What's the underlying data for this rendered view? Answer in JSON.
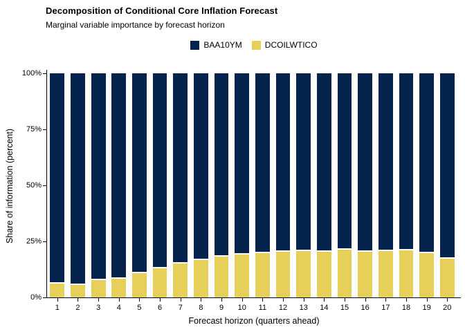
{
  "header": {
    "title": "Decomposition of Conditional Core Inflation Forecast",
    "subtitle": "Marginal variable importance by forecast horizon"
  },
  "legend": {
    "items": [
      {
        "label": "BAA10YM",
        "color": "#04234D"
      },
      {
        "label": "DCOILWTICO",
        "color": "#E6D05A"
      }
    ]
  },
  "chart_data": {
    "type": "bar",
    "stacked": true,
    "normalized": "percent",
    "title": "Decomposition of Conditional Core Inflation Forecast",
    "subtitle": "Marginal variable importance by forecast horizon",
    "xlabel": "Forecast horizon (quarters ahead)",
    "ylabel": "Share of information (percent)",
    "legend_position": "top-center",
    "grid": false,
    "ylim": [
      0,
      100
    ],
    "categories": [
      "1",
      "2",
      "3",
      "4",
      "5",
      "6",
      "7",
      "8",
      "9",
      "10",
      "11",
      "12",
      "13",
      "14",
      "15",
      "16",
      "17",
      "18",
      "19",
      "20"
    ],
    "series": [
      {
        "name": "BAA10YM",
        "color": "#04234D",
        "position": "top",
        "values": [
          93.3,
          93.8,
          91.8,
          90.9,
          88.7,
          86.5,
          84.3,
          82.8,
          81.1,
          80.2,
          79.5,
          79.1,
          78.6,
          78.9,
          78.2,
          79.0,
          78.8,
          78.5,
          79.6,
          82.0
        ]
      },
      {
        "name": "DCOILWTICO",
        "color": "#E6D05A",
        "position": "bottom",
        "values": [
          6.7,
          6.2,
          8.2,
          9.1,
          11.3,
          13.5,
          15.7,
          17.2,
          18.9,
          19.8,
          20.5,
          20.9,
          21.4,
          21.1,
          21.8,
          21.0,
          21.2,
          21.5,
          20.4,
          18.0
        ]
      }
    ],
    "y_ticks": [
      {
        "label": "0%",
        "value": 0
      },
      {
        "label": "25%",
        "value": 25
      },
      {
        "label": "50%",
        "value": 50
      },
      {
        "label": "75%",
        "value": 75
      },
      {
        "label": "100%",
        "value": 100
      }
    ]
  }
}
